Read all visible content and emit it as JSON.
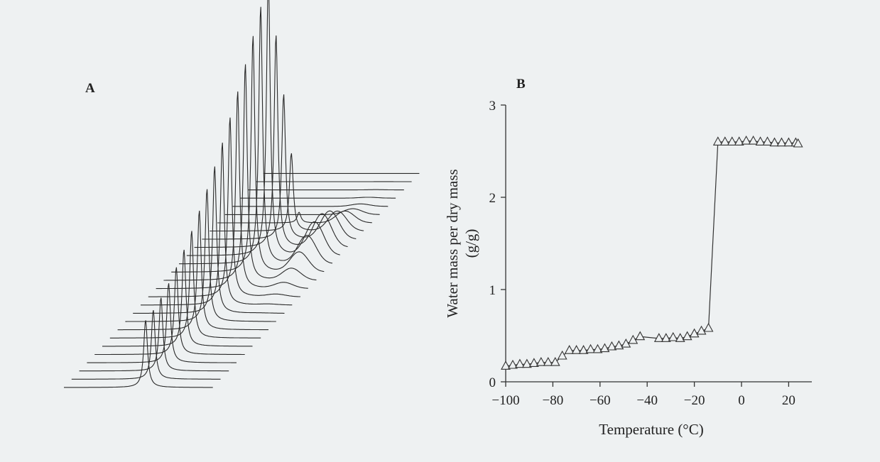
{
  "panels": {
    "a_label": "A",
    "b_label": "B"
  },
  "colors": {
    "background": "#eef1f2",
    "ink": "#2a2a2a"
  },
  "chart_data": [
    {
      "type": "line",
      "panel": "A",
      "title": "",
      "xlabel": "",
      "ylabel": "",
      "trace_count": 27
    },
    {
      "type": "line",
      "panel": "B",
      "title": "",
      "xlabel": "Temperature (°C)",
      "ylabel": "Water mass per dry mass",
      "ylabel_unit": "(g/g)",
      "xlim": [
        -100,
        25
      ],
      "ylim": [
        0,
        3
      ],
      "xticks": [
        -100,
        -80,
        -60,
        -40,
        -20,
        0,
        20
      ],
      "xtick_labels": [
        "−100",
        "−80",
        "−60",
        "−40",
        "−20",
        "0",
        "20"
      ],
      "yticks": [
        0,
        1,
        2,
        3
      ],
      "ytick_labels": [
        "0",
        "1",
        "2",
        "3"
      ],
      "marker": "open-triangle",
      "grid": false,
      "series": [
        {
          "x": [
            -100,
            -97,
            -94,
            -91,
            -88,
            -85,
            -82,
            -79,
            -76,
            -73,
            -70,
            -67,
            -64,
            -61,
            -58,
            -55,
            -52,
            -49,
            -46,
            -43,
            -35,
            -32,
            -29,
            -26,
            -23,
            -20,
            -17,
            -14,
            -10,
            -7,
            -4,
            -1,
            2,
            5,
            8,
            11,
            14,
            17,
            20,
            23,
            24
          ],
          "y": [
            0.17,
            0.18,
            0.19,
            0.19,
            0.2,
            0.21,
            0.21,
            0.21,
            0.28,
            0.34,
            0.34,
            0.34,
            0.35,
            0.35,
            0.36,
            0.38,
            0.39,
            0.41,
            0.45,
            0.49,
            0.47,
            0.47,
            0.48,
            0.47,
            0.49,
            0.52,
            0.55,
            0.58,
            2.6,
            2.6,
            2.6,
            2.6,
            2.61,
            2.61,
            2.6,
            2.6,
            2.59,
            2.59,
            2.59,
            2.59,
            2.58
          ]
        }
      ]
    }
  ]
}
